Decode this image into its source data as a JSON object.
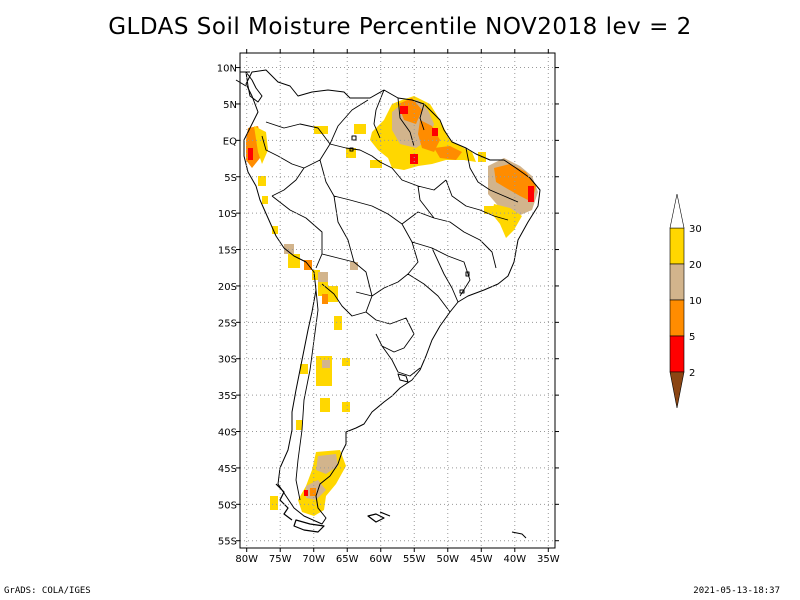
{
  "title": "GLDAS Soil Moisture Percentile NOV2018 lev = 2",
  "footer_left": "GrADS: COLA/IGES",
  "footer_right": "2021-05-13-18:37",
  "map": {
    "lon_range": [
      -81,
      -34
    ],
    "lat_range": [
      -56,
      12
    ],
    "lon_ticks": [
      {
        "value": -80,
        "label": "80W"
      },
      {
        "value": -75,
        "label": "75W"
      },
      {
        "value": -70,
        "label": "70W"
      },
      {
        "value": -65,
        "label": "65W"
      },
      {
        "value": -60,
        "label": "60W"
      },
      {
        "value": -55,
        "label": "55W"
      },
      {
        "value": -50,
        "label": "50W"
      },
      {
        "value": -45,
        "label": "45W"
      },
      {
        "value": -40,
        "label": "40W"
      },
      {
        "value": -35,
        "label": "35W"
      }
    ],
    "lat_ticks": [
      {
        "value": 10,
        "label": "10N"
      },
      {
        "value": 5,
        "label": "5N"
      },
      {
        "value": 0,
        "label": "EQ"
      },
      {
        "value": -5,
        "label": "5S"
      },
      {
        "value": -10,
        "label": "10S"
      },
      {
        "value": -15,
        "label": "15S"
      },
      {
        "value": -20,
        "label": "20S"
      },
      {
        "value": -25,
        "label": "25S"
      },
      {
        "value": -30,
        "label": "30S"
      },
      {
        "value": -35,
        "label": "35S"
      },
      {
        "value": -40,
        "label": "40S"
      },
      {
        "value": -45,
        "label": "45S"
      },
      {
        "value": -50,
        "label": "50S"
      },
      {
        "value": -55,
        "label": "55S"
      }
    ],
    "grid": true
  },
  "legend": {
    "labels": [
      "2",
      "5",
      "10",
      "20",
      "30"
    ],
    "colors": [
      "#8b4513",
      "#ff0000",
      "#ff8c00",
      "#d2b48c",
      "#ffd700",
      "#ffffff"
    ]
  },
  "percentile_colors": {
    "lt2": "#8b4513",
    "2_5": "#ff0000",
    "5_10": "#ff8c00",
    "10_20": "#d2b48c",
    "20_30": "#ffd700"
  }
}
